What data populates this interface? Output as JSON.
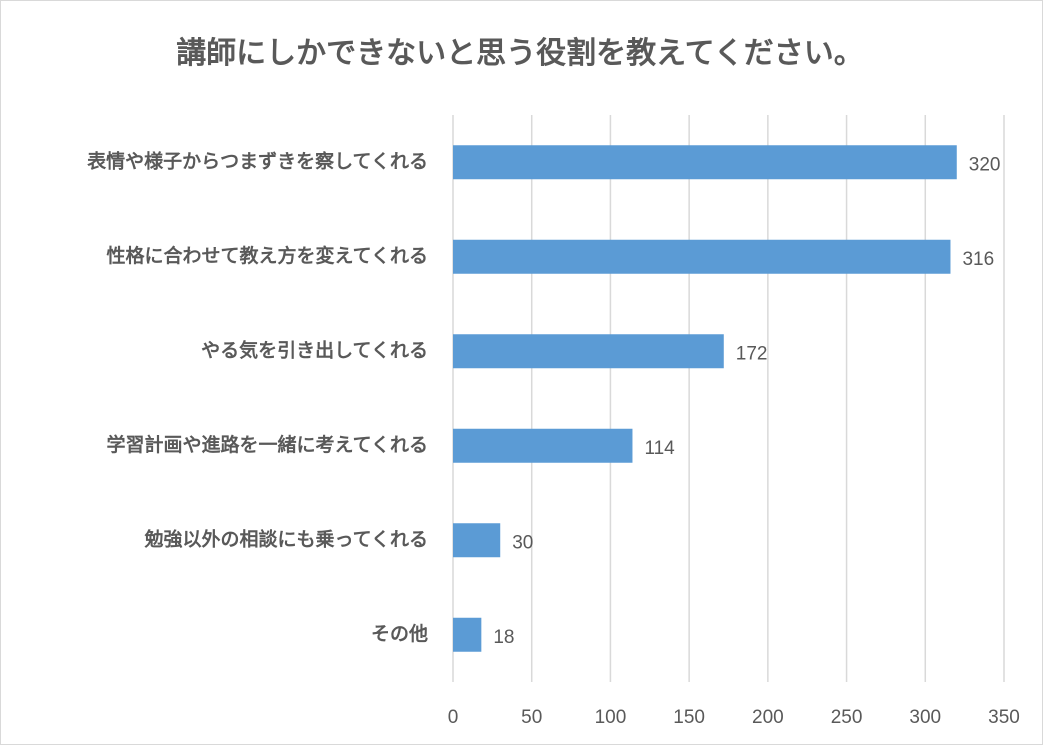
{
  "chart_data": {
    "type": "barh",
    "title": "講師にしかできないと思う役割を教えてください。",
    "categories": [
      "表情や様子からつまずきを察してくれる",
      "性格に合わせて教え方を変えてくれる",
      "やる気を引き出してくれる",
      "学習計画や進路を一緒に考えてくれる",
      "勉強以外の相談にも乗ってくれる",
      "その他"
    ],
    "values": [
      320,
      316,
      172,
      114,
      30,
      18
    ],
    "color": "#5b9bd5",
    "xlim": [
      0,
      350
    ],
    "xticks": [
      0,
      50,
      100,
      150,
      200,
      250,
      300,
      350
    ],
    "grid": true
  }
}
